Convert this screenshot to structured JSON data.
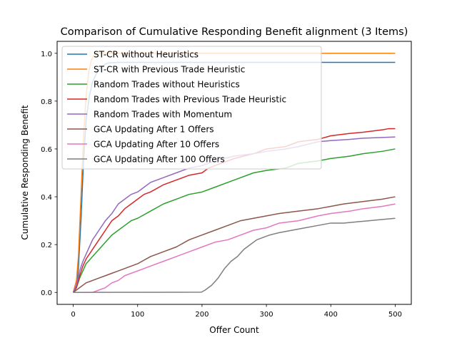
{
  "chart_data": {
    "type": "line",
    "title": "Comparison of Cumulative Responding Benefit alignment (3 Items)",
    "xlabel": "Offer Count",
    "ylabel": "Cumulative Responding Benefit",
    "xlim": [
      -25,
      525
    ],
    "ylim": [
      -0.05,
      1.05
    ],
    "xticks": [
      0,
      100,
      200,
      300,
      400,
      500
    ],
    "xtick_labels": [
      "0",
      "100",
      "200",
      "300",
      "400",
      "500"
    ],
    "yticks": [
      0.0,
      0.2,
      0.4,
      0.6,
      0.8,
      1.0
    ],
    "ytick_labels": [
      "0.0",
      "0.2",
      "0.4",
      "0.6",
      "0.8",
      "1.0"
    ],
    "grid": false,
    "legend_position": "upper-left",
    "series": [
      {
        "name": "ST-CR without Heuristics",
        "color": "#1f77b4",
        "points": [
          [
            0,
            0
          ],
          [
            5,
            0.03
          ],
          [
            8,
            0.1
          ],
          [
            12,
            0.3
          ],
          [
            16,
            0.55
          ],
          [
            20,
            0.72
          ],
          [
            25,
            0.82
          ],
          [
            30,
            0.88
          ],
          [
            35,
            0.91
          ],
          [
            40,
            0.93
          ],
          [
            45,
            0.945
          ],
          [
            50,
            0.955
          ],
          [
            55,
            0.96
          ],
          [
            70,
            0.962
          ],
          [
            500,
            0.962
          ]
        ]
      },
      {
        "name": "ST-CR with Previous Trade Heuristic",
        "color": "#ff7f0e",
        "points": [
          [
            0,
            0
          ],
          [
            5,
            0.05
          ],
          [
            8,
            0.15
          ],
          [
            12,
            0.4
          ],
          [
            16,
            0.65
          ],
          [
            20,
            0.82
          ],
          [
            24,
            0.92
          ],
          [
            28,
            0.97
          ],
          [
            32,
            0.99
          ],
          [
            36,
            1.0
          ],
          [
            500,
            1.0
          ]
        ]
      },
      {
        "name": "Random Trades without Heuristics",
        "color": "#2ca02c",
        "points": [
          [
            0,
            0
          ],
          [
            5,
            0.02
          ],
          [
            10,
            0.06
          ],
          [
            15,
            0.09
          ],
          [
            20,
            0.12
          ],
          [
            30,
            0.15
          ],
          [
            40,
            0.18
          ],
          [
            50,
            0.21
          ],
          [
            60,
            0.24
          ],
          [
            70,
            0.26
          ],
          [
            80,
            0.28
          ],
          [
            90,
            0.3
          ],
          [
            100,
            0.31
          ],
          [
            120,
            0.34
          ],
          [
            140,
            0.37
          ],
          [
            160,
            0.39
          ],
          [
            180,
            0.41
          ],
          [
            200,
            0.42
          ],
          [
            220,
            0.44
          ],
          [
            250,
            0.47
          ],
          [
            280,
            0.5
          ],
          [
            300,
            0.51
          ],
          [
            330,
            0.52
          ],
          [
            350,
            0.54
          ],
          [
            380,
            0.55
          ],
          [
            400,
            0.56
          ],
          [
            430,
            0.57
          ],
          [
            450,
            0.58
          ],
          [
            480,
            0.59
          ],
          [
            500,
            0.6
          ]
        ]
      },
      {
        "name": "Random Trades with Previous Trade Heuristic",
        "color": "#d62728",
        "points": [
          [
            0,
            0
          ],
          [
            5,
            0.02
          ],
          [
            10,
            0.07
          ],
          [
            15,
            0.11
          ],
          [
            20,
            0.14
          ],
          [
            30,
            0.18
          ],
          [
            40,
            0.22
          ],
          [
            50,
            0.26
          ],
          [
            60,
            0.3
          ],
          [
            70,
            0.32
          ],
          [
            80,
            0.35
          ],
          [
            90,
            0.37
          ],
          [
            100,
            0.39
          ],
          [
            110,
            0.41
          ],
          [
            120,
            0.42
          ],
          [
            140,
            0.45
          ],
          [
            160,
            0.47
          ],
          [
            180,
            0.49
          ],
          [
            200,
            0.5
          ],
          [
            210,
            0.52
          ],
          [
            230,
            0.54
          ],
          [
            250,
            0.56
          ],
          [
            280,
            0.58
          ],
          [
            300,
            0.6
          ],
          [
            330,
            0.61
          ],
          [
            350,
            0.63
          ],
          [
            380,
            0.64
          ],
          [
            400,
            0.655
          ],
          [
            430,
            0.665
          ],
          [
            450,
            0.67
          ],
          [
            480,
            0.68
          ],
          [
            490,
            0.685
          ],
          [
            500,
            0.685
          ]
        ]
      },
      {
        "name": "Random Trades with Momentum",
        "color": "#9467bd",
        "points": [
          [
            0,
            0
          ],
          [
            5,
            0.03
          ],
          [
            10,
            0.09
          ],
          [
            15,
            0.13
          ],
          [
            20,
            0.16
          ],
          [
            30,
            0.22
          ],
          [
            40,
            0.26
          ],
          [
            50,
            0.3
          ],
          [
            60,
            0.33
          ],
          [
            70,
            0.37
          ],
          [
            80,
            0.39
          ],
          [
            90,
            0.41
          ],
          [
            100,
            0.42
          ],
          [
            110,
            0.44
          ],
          [
            120,
            0.46
          ],
          [
            140,
            0.48
          ],
          [
            160,
            0.5
          ],
          [
            180,
            0.52
          ],
          [
            200,
            0.53
          ],
          [
            220,
            0.55
          ],
          [
            250,
            0.57
          ],
          [
            280,
            0.58
          ],
          [
            300,
            0.59
          ],
          [
            330,
            0.6
          ],
          [
            350,
            0.61
          ],
          [
            380,
            0.63
          ],
          [
            400,
            0.635
          ],
          [
            430,
            0.64
          ],
          [
            450,
            0.645
          ],
          [
            480,
            0.648
          ],
          [
            500,
            0.65
          ]
        ]
      },
      {
        "name": "GCA Updating After 1 Offers",
        "color": "#8c564b",
        "points": [
          [
            0,
            0
          ],
          [
            10,
            0.02
          ],
          [
            20,
            0.04
          ],
          [
            30,
            0.05
          ],
          [
            40,
            0.06
          ],
          [
            50,
            0.07
          ],
          [
            60,
            0.08
          ],
          [
            70,
            0.09
          ],
          [
            80,
            0.1
          ],
          [
            100,
            0.12
          ],
          [
            120,
            0.15
          ],
          [
            140,
            0.17
          ],
          [
            160,
            0.19
          ],
          [
            180,
            0.22
          ],
          [
            200,
            0.24
          ],
          [
            220,
            0.26
          ],
          [
            240,
            0.28
          ],
          [
            260,
            0.3
          ],
          [
            280,
            0.31
          ],
          [
            300,
            0.32
          ],
          [
            320,
            0.33
          ],
          [
            350,
            0.34
          ],
          [
            380,
            0.35
          ],
          [
            400,
            0.36
          ],
          [
            420,
            0.37
          ],
          [
            450,
            0.38
          ],
          [
            480,
            0.39
          ],
          [
            500,
            0.4
          ]
        ]
      },
      {
        "name": "GCA Updating After 10 Offers",
        "color": "#e377c2",
        "points": [
          [
            0,
            0
          ],
          [
            30,
            0
          ],
          [
            40,
            0.01
          ],
          [
            50,
            0.02
          ],
          [
            60,
            0.04
          ],
          [
            70,
            0.05
          ],
          [
            80,
            0.07
          ],
          [
            90,
            0.08
          ],
          [
            100,
            0.09
          ],
          [
            110,
            0.1
          ],
          [
            120,
            0.11
          ],
          [
            140,
            0.13
          ],
          [
            160,
            0.15
          ],
          [
            180,
            0.17
          ],
          [
            200,
            0.19
          ],
          [
            220,
            0.21
          ],
          [
            240,
            0.22
          ],
          [
            260,
            0.24
          ],
          [
            280,
            0.26
          ],
          [
            300,
            0.27
          ],
          [
            320,
            0.29
          ],
          [
            350,
            0.3
          ],
          [
            380,
            0.32
          ],
          [
            400,
            0.33
          ],
          [
            430,
            0.34
          ],
          [
            450,
            0.35
          ],
          [
            480,
            0.36
          ],
          [
            500,
            0.37
          ]
        ]
      },
      {
        "name": "GCA Updating After 100 Offers",
        "color": "#7f7f7f",
        "points": [
          [
            0,
            0
          ],
          [
            199,
            0.001
          ],
          [
            205,
            0.01
          ],
          [
            215,
            0.03
          ],
          [
            225,
            0.06
          ],
          [
            235,
            0.1
          ],
          [
            245,
            0.13
          ],
          [
            255,
            0.15
          ],
          [
            265,
            0.18
          ],
          [
            275,
            0.2
          ],
          [
            285,
            0.22
          ],
          [
            295,
            0.23
          ],
          [
            305,
            0.24
          ],
          [
            320,
            0.25
          ],
          [
            340,
            0.26
          ],
          [
            360,
            0.27
          ],
          [
            380,
            0.28
          ],
          [
            400,
            0.29
          ],
          [
            420,
            0.29
          ],
          [
            440,
            0.295
          ],
          [
            460,
            0.3
          ],
          [
            480,
            0.305
          ],
          [
            500,
            0.31
          ]
        ]
      }
    ]
  }
}
